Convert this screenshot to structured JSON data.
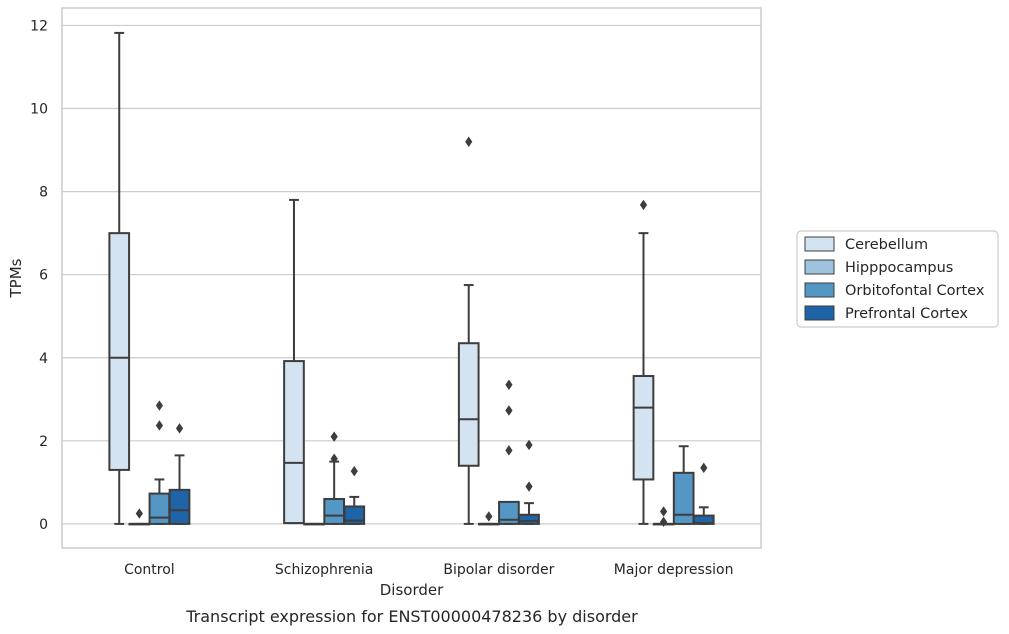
{
  "caption": "Transcript expression for ENST00000478236 by disorder",
  "chart_data": {
    "type": "box",
    "xlabel": "Disorder",
    "ylabel": "TPMs",
    "ylim": [
      -0.58,
      12.42
    ],
    "yticks": [
      0,
      2,
      4,
      6,
      8,
      10,
      12
    ],
    "grid": "horizontal",
    "legend_position": "right",
    "categories": [
      "Control",
      "Schizophrenia",
      "Bipolar disorder",
      "Major depression"
    ],
    "series": [
      {
        "name": "Cerebellum",
        "color": "#d4e3f1",
        "boxes": [
          {
            "whisker_low": 0,
            "q1": 1.3,
            "median": 4.0,
            "q3": 7.0,
            "whisker_high": 11.82,
            "outliers": []
          },
          {
            "whisker_low": 0.02,
            "q1": 0.02,
            "median": 1.47,
            "q3": 3.92,
            "whisker_high": 7.8,
            "outliers": []
          },
          {
            "whisker_low": 0,
            "q1": 1.4,
            "median": 2.52,
            "q3": 4.35,
            "whisker_high": 5.75,
            "outliers": [
              9.2
            ]
          },
          {
            "whisker_low": 0,
            "q1": 1.07,
            "median": 2.8,
            "q3": 3.56,
            "whisker_high": 7.0,
            "outliers": [
              7.68
            ]
          }
        ]
      },
      {
        "name": "Hipppocampus",
        "color": "#9dc3de",
        "boxes": [
          {
            "whisker_low": 0,
            "q1": 0,
            "median": 0,
            "q3": 0,
            "whisker_high": 0,
            "outliers": [
              0.25
            ]
          },
          {
            "whisker_low": 0,
            "q1": 0,
            "median": 0,
            "q3": 0,
            "whisker_high": 0,
            "outliers": []
          },
          {
            "whisker_low": 0,
            "q1": 0,
            "median": 0,
            "q3": 0,
            "whisker_high": 0,
            "outliers": [
              0.18
            ]
          },
          {
            "whisker_low": 0,
            "q1": 0,
            "median": 0,
            "q3": 0,
            "whisker_high": 0,
            "outliers": [
              0.3,
              0.05
            ]
          }
        ]
      },
      {
        "name": "Orbitofontal Cortex",
        "color": "#5496c4",
        "boxes": [
          {
            "whisker_low": 0,
            "q1": 0,
            "median": 0.15,
            "q3": 0.73,
            "whisker_high": 1.07,
            "outliers": [
              2.37,
              2.85
            ]
          },
          {
            "whisker_low": 0,
            "q1": 0,
            "median": 0.2,
            "q3": 0.6,
            "whisker_high": 1.5,
            "outliers": [
              1.57,
              2.1
            ]
          },
          {
            "whisker_low": 0,
            "q1": 0,
            "median": 0.1,
            "q3": 0.53,
            "whisker_high": 0.53,
            "outliers": [
              1.77,
              2.73,
              3.35
            ]
          },
          {
            "whisker_low": 0,
            "q1": 0,
            "median": 0.22,
            "q3": 1.23,
            "whisker_high": 1.87,
            "outliers": []
          }
        ]
      },
      {
        "name": "Prefrontal Cortex",
        "color": "#2064a8",
        "boxes": [
          {
            "whisker_low": 0,
            "q1": 0,
            "median": 0.33,
            "q3": 0.82,
            "whisker_high": 1.65,
            "outliers": [
              2.3
            ]
          },
          {
            "whisker_low": 0,
            "q1": 0,
            "median": 0.08,
            "q3": 0.42,
            "whisker_high": 0.65,
            "outliers": [
              1.27
            ]
          },
          {
            "whisker_low": 0,
            "q1": 0,
            "median": 0.07,
            "q3": 0.22,
            "whisker_high": 0.5,
            "outliers": [
              0.9,
              1.9
            ]
          },
          {
            "whisker_low": 0,
            "q1": 0,
            "median": 0.02,
            "q3": 0.2,
            "whisker_high": 0.4,
            "outliers": [
              1.35
            ]
          }
        ]
      }
    ]
  }
}
